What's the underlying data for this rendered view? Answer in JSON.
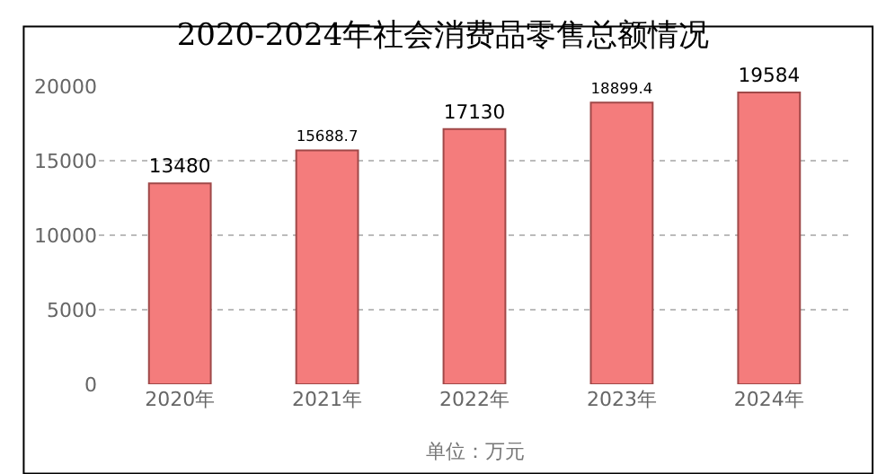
{
  "chart_data": {
    "type": "bar",
    "title": "2020-2024年社会消费品零售总额情况",
    "categories": [
      "2020年",
      "2021年",
      "2022年",
      "2023年",
      "2024年"
    ],
    "values": [
      13480,
      15688.7,
      17130,
      18899.4,
      19584
    ],
    "color": "#f47c7c",
    "ylim": [
      0,
      20000
    ],
    "yticks": [
      0,
      5000,
      10000,
      15000,
      20000
    ],
    "grid": "y",
    "data_labels": true,
    "annotations": [
      "单位：万元"
    ]
  }
}
